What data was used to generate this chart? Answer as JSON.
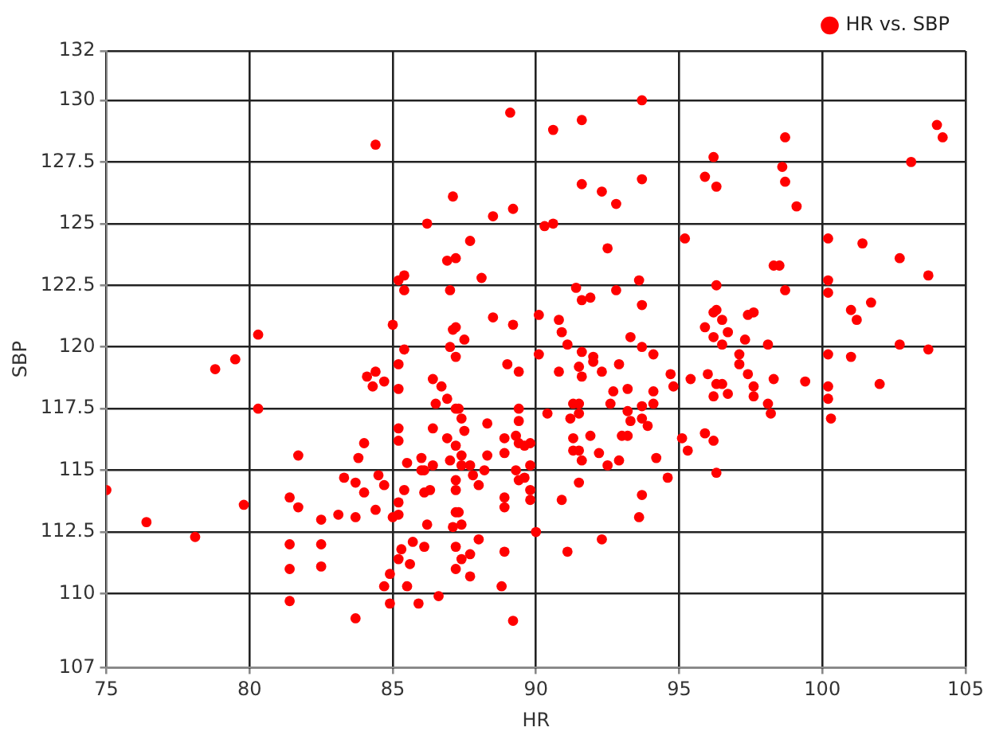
{
  "chart_data": {
    "type": "scatter",
    "xlabel": "HR",
    "ylabel": "SBP",
    "xlim": [
      75,
      105
    ],
    "xticks": [
      75,
      80,
      85,
      90,
      95,
      100,
      105
    ],
    "ylim": [
      107,
      132
    ],
    "yticks": [
      107,
      110,
      112.5,
      115,
      117.5,
      120,
      122.5,
      125,
      127.5,
      130,
      132
    ],
    "grid": true,
    "legend": "top right",
    "marker": "circle",
    "series": [
      {
        "name": "HR vs. SBP",
        "color": "#ff0000",
        "x": [
          75,
          76.4,
          78.1,
          78.8,
          79.5,
          79.8,
          80.3,
          80.3,
          81.7,
          81.4,
          81.7,
          81.4,
          81.4,
          81.4,
          82.5,
          82.5,
          82.5,
          83.1,
          83.7,
          83.7,
          83.3,
          83.7,
          84.0,
          83.8,
          84.0,
          84.4,
          84.5,
          84.7,
          84.1,
          84.4,
          84.3,
          84.7,
          85.2,
          85.2,
          85.4,
          85.0,
          85.2,
          85.2,
          85.5,
          85.0,
          85.2,
          85.4,
          85.2,
          85.3,
          85.2,
          85.6,
          85.7,
          84.9,
          84.7,
          84.9,
          85.5,
          85.9,
          86.6,
          86.1,
          86.2,
          86.0,
          86.0,
          86.1,
          86.4,
          86.1,
          86.3,
          86.4,
          86.9,
          87.0,
          87.2,
          87.4,
          87.4,
          87.5,
          87.7,
          87.8,
          88.0,
          88.2,
          88.3,
          88.3,
          87.2,
          87.2,
          87.2,
          87.3,
          87.1,
          87.4,
          87.2,
          87.4,
          87.7,
          87.2,
          87.7,
          88.0,
          86.4,
          86.7,
          86.9,
          86.5,
          87.2,
          87.3,
          87.4,
          87.2,
          87.0,
          87.0,
          86.9,
          87.2,
          87.1,
          86.2,
          87.7,
          88.5,
          89.2,
          88.1,
          87.1,
          87.2,
          87.5,
          88.5,
          89.2,
          90.1,
          85.4,
          85.2,
          85.4,
          84.4,
          89.1,
          89.0,
          89.4,
          89.4,
          89.4,
          88.9,
          89.3,
          89.4,
          89.6,
          89.8,
          88.9,
          89.3,
          89.4,
          89.6,
          89.8,
          89.8,
          89.8,
          88.9,
          88.9,
          90.0,
          88.9,
          88.8,
          89.2,
          90.1,
          93.7,
          90.6,
          91.6,
          98.7,
          96.2,
          95.9,
          96.3,
          98.6,
          98.7,
          99.1,
          104.0,
          104.2,
          103.1,
          91.6,
          92.3,
          92.8,
          93.7,
          90.3,
          90.6,
          92.5,
          95.2,
          100.2,
          101.4,
          102.7,
          103.7,
          98.3,
          98.5,
          91.4,
          91.6,
          91.9,
          92.8,
          93.6,
          93.7,
          96.3,
          98.7,
          100.2,
          100.2,
          101.0,
          101.2,
          101.7,
          90.8,
          90.9,
          91.1,
          91.6,
          92.0,
          93.3,
          93.7,
          94.1,
          96.2,
          96.3,
          96.5,
          95.9,
          96.2,
          96.7,
          97.4,
          97.6,
          97.3,
          96.5,
          98.1,
          97.1,
          100.2,
          101.0,
          102.7,
          103.7,
          92.0,
          92.9,
          90.8,
          91.5,
          91.6,
          92.3,
          94.7,
          94.8,
          95.4,
          96.0,
          96.3,
          96.5,
          96.2,
          96.7,
          97.1,
          97.4,
          97.6,
          97.6,
          98.3,
          99.4,
          98.1,
          98.2,
          102.0,
          100.2,
          100.2,
          100.3,
          92.7,
          93.2,
          94.1,
          92.6,
          93.7,
          94.1,
          91.3,
          91.5,
          90.4,
          91.2,
          91.5,
          93.2,
          93.3,
          93.7,
          93.9,
          91.9,
          93.0,
          93.2,
          91.3,
          91.3,
          91.5,
          91.6,
          92.2,
          92.5,
          92.9,
          94.2,
          95.1,
          95.3,
          95.9,
          96.2,
          96.3,
          94.6,
          91.5,
          90.9,
          93.7,
          93.6,
          92.3,
          91.1
        ],
        "values": [
          114.2,
          112.9,
          112.3,
          119.1,
          119.5,
          113.6,
          117.5,
          120.5,
          115.6,
          113.9,
          113.5,
          112.0,
          111.0,
          109.7,
          112.0,
          111.1,
          113.0,
          113.2,
          113.1,
          109.0,
          114.7,
          114.5,
          116.1,
          115.5,
          114.1,
          113.4,
          114.8,
          114.4,
          118.8,
          119.0,
          118.4,
          118.6,
          119.3,
          118.3,
          119.9,
          120.9,
          116.7,
          116.2,
          115.3,
          113.1,
          113.2,
          114.2,
          113.7,
          111.8,
          111.4,
          111.2,
          112.1,
          110.8,
          110.3,
          109.6,
          110.3,
          109.6,
          109.9,
          111.9,
          112.8,
          115.5,
          115.0,
          115.0,
          115.2,
          114.1,
          114.2,
          116.7,
          116.3,
          115.4,
          116.0,
          115.6,
          115.2,
          116.6,
          115.2,
          114.8,
          114.4,
          115.0,
          115.6,
          116.9,
          114.6,
          114.2,
          113.3,
          113.3,
          112.7,
          112.8,
          111.9,
          111.4,
          111.6,
          111.0,
          110.7,
          112.2,
          118.7,
          118.4,
          117.9,
          117.7,
          117.5,
          117.5,
          117.1,
          119.6,
          120.0,
          122.3,
          123.5,
          123.6,
          126.1,
          125.0,
          124.3,
          125.3,
          125.6,
          122.8,
          120.7,
          120.8,
          120.3,
          121.2,
          120.9,
          121.3,
          122.9,
          122.7,
          122.3,
          128.2,
          129.5,
          119.3,
          119.0,
          117.5,
          117.0,
          116.3,
          116.4,
          116.1,
          116.0,
          116.1,
          115.7,
          115.0,
          114.6,
          114.7,
          115.2,
          114.2,
          113.8,
          113.9,
          113.5,
          112.5,
          111.7,
          110.3,
          108.9,
          119.7,
          130.0,
          128.8,
          129.2,
          128.5,
          127.7,
          126.9,
          126.5,
          127.3,
          126.7,
          125.7,
          129.0,
          128.5,
          127.5,
          126.6,
          126.3,
          125.8,
          126.8,
          124.9,
          125.0,
          124.0,
          124.4,
          124.4,
          124.2,
          123.6,
          122.9,
          123.3,
          123.3,
          122.4,
          121.9,
          122.0,
          122.3,
          122.7,
          121.7,
          122.5,
          122.3,
          122.7,
          122.2,
          121.5,
          121.1,
          121.8,
          121.1,
          120.6,
          120.1,
          119.8,
          119.6,
          120.4,
          120.0,
          119.7,
          121.4,
          121.5,
          121.1,
          120.8,
          120.4,
          120.6,
          121.3,
          121.4,
          120.3,
          120.1,
          120.1,
          119.7,
          119.7,
          119.6,
          120.1,
          119.9,
          119.4,
          119.3,
          119.0,
          119.2,
          118.8,
          119.0,
          118.9,
          118.4,
          118.7,
          118.9,
          118.5,
          118.5,
          118.0,
          118.1,
          119.3,
          118.9,
          118.4,
          118.0,
          118.7,
          118.6,
          117.7,
          117.3,
          118.5,
          118.4,
          117.9,
          117.1,
          118.2,
          118.3,
          118.2,
          117.7,
          117.6,
          117.7,
          117.7,
          117.7,
          117.3,
          117.1,
          117.3,
          117.4,
          117.0,
          117.1,
          116.8,
          116.4,
          116.4,
          116.4,
          116.3,
          115.8,
          115.8,
          115.4,
          115.7,
          115.2,
          115.4,
          115.5,
          116.3,
          115.8,
          116.5,
          116.2,
          114.9,
          114.7,
          114.5,
          113.8,
          114.0,
          113.1,
          112.2,
          111.7
        ]
      }
    ]
  }
}
